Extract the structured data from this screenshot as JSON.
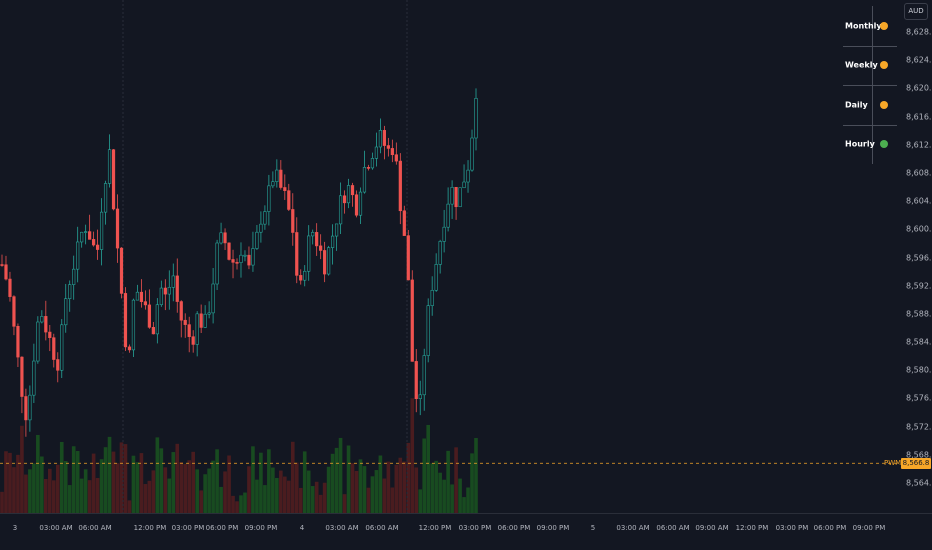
{
  "currency": "AUD",
  "price_axis": {
    "labels": [
      "8,628.0",
      "8,624.0",
      "8,620.0",
      "8,616.0",
      "8,612.0",
      "8,608.0",
      "8,604.0",
      "8,600.0",
      "8,596.0",
      "8,592.0",
      "8,588.0",
      "8,584.0",
      "8,580.0",
      "8,576.0",
      "8,572.0",
      "8,568.0",
      "8,564.0"
    ],
    "values": [
      8628,
      8624,
      8620,
      8616,
      8612,
      8608,
      8604,
      8600,
      8596,
      8592,
      8588,
      8584,
      8580,
      8576,
      8572,
      8568,
      8564
    ]
  },
  "time_axis": {
    "labels": [
      "3",
      "03:00 AM",
      "06:00 AM",
      "12:00 PM",
      "03:00 PM",
      "06:00 PM",
      "09:00 PM",
      "4",
      "03:00 AM",
      "06:00 AM",
      "12:00 PM",
      "03:00 PM",
      "06:00 PM",
      "09:00 PM",
      "5",
      "03:00 AM",
      "06:00 AM",
      "09:00 AM",
      "12:00 PM",
      "03:00 PM",
      "06:00 PM",
      "09:00 PM"
    ]
  },
  "timeframes": [
    {
      "label": "Monthly",
      "status_color": "#f7a728"
    },
    {
      "label": "Weekly",
      "status_color": "#f7a728"
    },
    {
      "label": "Daily",
      "status_color": "#f7a728"
    },
    {
      "label": "Hourly",
      "status_color": "#4caf50"
    }
  ],
  "pwm_line": {
    "label": "PWM",
    "price": "8,566.8",
    "value": 8566.8,
    "color": "#f7a728"
  },
  "colors": {
    "up": "#26a69a",
    "down": "#ef5350",
    "vol_up": "#1b5e20",
    "vol_down": "#5d1f1f",
    "grid": "#1e222d"
  },
  "chart_data": {
    "type": "candlestick",
    "ylim": [
      8562,
      8632
    ],
    "close_path": [
      8595,
      8592,
      8585,
      8578,
      8573,
      8582,
      8589,
      8586,
      8583,
      8581,
      8590,
      8594,
      8597,
      8601,
      8599,
      8596,
      8606,
      8611,
      8600,
      8590,
      8580,
      8592,
      8590,
      8588,
      8586,
      8592,
      8590,
      8594,
      8588,
      8586,
      8584,
      8588,
      8586,
      8590,
      8597,
      8599,
      8596,
      8595,
      8598,
      8594,
      8597,
      8602,
      8604,
      8608,
      8606,
      8604,
      8600,
      8590,
      8596,
      8600,
      8598,
      8595,
      8598,
      8602,
      8605,
      8606,
      8603,
      8608,
      8610,
      8612,
      8613,
      8611,
      8612,
      8604,
      8597,
      8580,
      8573,
      8585,
      8592,
      8597,
      8602,
      8606,
      8604,
      8607,
      8610,
      8620
    ]
  }
}
